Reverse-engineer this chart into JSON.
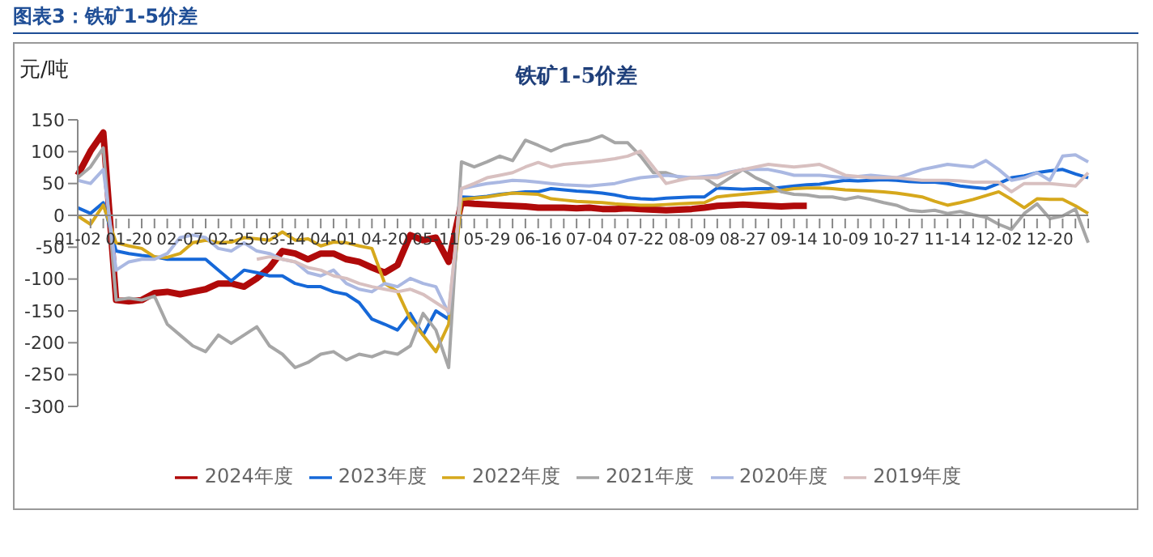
{
  "chart_data": {
    "type": "line",
    "title": "图表3：铁矿1-5价差",
    "subtitle": "铁矿1-5价差",
    "ylabel": "元/吨",
    "categories": [
      "01-02",
      null,
      null,
      null,
      "01-20",
      null,
      null,
      null,
      "02-07",
      null,
      null,
      null,
      "02-25",
      null,
      null,
      null,
      "03-14",
      null,
      null,
      null,
      "04-01",
      null,
      null,
      null,
      "04-20",
      null,
      null,
      null,
      "05-11",
      null,
      null,
      null,
      "05-29",
      null,
      null,
      null,
      "06-16",
      null,
      null,
      null,
      "07-04",
      null,
      null,
      null,
      "07-22",
      null,
      null,
      null,
      "08-09",
      null,
      null,
      null,
      "08-27",
      null,
      null,
      null,
      "09-14",
      null,
      null,
      null,
      "10-09",
      null,
      null,
      null,
      "10-27",
      null,
      null,
      null,
      "11-14",
      null,
      null,
      null,
      "12-02",
      null,
      null,
      null,
      "12-20",
      null,
      null,
      null
    ],
    "series": [
      {
        "name": "2024年度",
        "color": "#b00a0a",
        "values": [
          63,
          101,
          130,
          -133,
          -135,
          -133,
          -122,
          -120,
          -124,
          -120,
          -116,
          -107,
          -107,
          -112,
          -99,
          -82,
          -56,
          -60,
          -69,
          -60,
          -60,
          -69,
          -73,
          -82,
          -90,
          -78,
          -31,
          -39,
          -35,
          -73,
          20,
          18,
          17,
          16,
          15,
          14,
          12,
          12,
          12,
          11,
          12,
          10,
          10,
          11,
          10,
          9,
          8,
          9,
          10,
          12,
          15,
          16,
          17,
          16,
          15,
          14,
          15,
          15,
          null,
          null,
          null,
          null,
          null,
          null,
          null,
          null,
          null,
          null,
          null,
          null,
          null,
          null,
          null,
          null,
          null,
          null,
          null,
          null,
          null,
          null
        ]
      },
      {
        "name": "2023年度",
        "color": "#1668d8",
        "values": [
          12,
          3,
          20,
          -56,
          -60,
          -63,
          -65,
          -69,
          -69,
          -69,
          -69,
          -86,
          -103,
          -86,
          -90,
          -95,
          -95,
          -107,
          -112,
          -112,
          -120,
          -124,
          -137,
          -163,
          -171,
          -180,
          -154,
          -188,
          -150,
          -163,
          29,
          28,
          30,
          33,
          35,
          37,
          37,
          42,
          40,
          38,
          37,
          35,
          32,
          28,
          26,
          25,
          27,
          28,
          29,
          29,
          43,
          42,
          41,
          42,
          42,
          44,
          46,
          48,
          49,
          52,
          55,
          54,
          55,
          56,
          55,
          53,
          52,
          52,
          50,
          46,
          44,
          42,
          50,
          59,
          62,
          67,
          70,
          72,
          65,
          59
        ]
      },
      {
        "name": "2022年度",
        "color": "#d6a81c",
        "values": [
          -1,
          -14,
          16,
          -43,
          -48,
          -52,
          -65,
          -66,
          -60,
          -43,
          -39,
          -43,
          -42,
          -35,
          -37,
          -39,
          -26,
          -39,
          -37,
          -48,
          -42,
          -43,
          -48,
          -52,
          -107,
          -120,
          -163,
          -188,
          -214,
          -171,
          25,
          27,
          29,
          32,
          35,
          34,
          33,
          26,
          24,
          22,
          21,
          20,
          18,
          17,
          16,
          16,
          17,
          18,
          19,
          20,
          29,
          31,
          33,
          35,
          37,
          39,
          42,
          43,
          43,
          42,
          40,
          39,
          38,
          37,
          35,
          32,
          29,
          22,
          16,
          20,
          25,
          31,
          37,
          25,
          12,
          26,
          25,
          25,
          15,
          3
        ]
      },
      {
        "name": "2021年度",
        "color": "#a6a6a6",
        "values": [
          59,
          76,
          106,
          -133,
          -130,
          -133,
          -127,
          -171,
          -188,
          -205,
          -214,
          -188,
          -201,
          -188,
          -175,
          -205,
          -218,
          -239,
          -231,
          -218,
          -214,
          -227,
          -218,
          -222,
          -214,
          -218,
          -205,
          -154,
          -180,
          -239,
          84,
          76,
          84,
          93,
          86,
          118,
          110,
          101,
          110,
          114,
          118,
          125,
          114,
          114,
          93,
          67,
          67,
          60,
          59,
          59,
          46,
          59,
          72,
          59,
          50,
          37,
          33,
          32,
          29,
          29,
          25,
          29,
          25,
          20,
          16,
          8,
          6,
          8,
          3,
          6,
          1,
          -3,
          -14,
          -22,
          3,
          18,
          -5,
          -1,
          10,
          -43
        ]
      },
      {
        "name": "2020年度",
        "color": "#aab8e2",
        "values": [
          55,
          50,
          72,
          -86,
          -73,
          -69,
          -69,
          -60,
          -35,
          -31,
          -35,
          -52,
          -56,
          -43,
          -56,
          -60,
          -69,
          -73,
          -90,
          -95,
          -86,
          -107,
          -116,
          -120,
          -107,
          -112,
          -99,
          -107,
          -112,
          -154,
          42,
          46,
          50,
          52,
          55,
          54,
          52,
          50,
          48,
          47,
          46,
          48,
          50,
          55,
          59,
          61,
          63,
          61,
          59,
          61,
          63,
          68,
          72,
          72,
          72,
          68,
          63,
          63,
          63,
          61,
          59,
          61,
          63,
          61,
          59,
          65,
          72,
          76,
          80,
          78,
          76,
          86,
          72,
          55,
          59,
          67,
          55,
          93,
          95,
          84
        ]
      },
      {
        "name": "2019年度",
        "color": "#d8c0c0",
        "values": [
          null,
          null,
          null,
          null,
          null,
          null,
          null,
          null,
          null,
          null,
          null,
          null,
          null,
          null,
          -69,
          -65,
          -69,
          -73,
          -82,
          -86,
          -95,
          -99,
          -107,
          -112,
          -116,
          -120,
          -116,
          -124,
          -137,
          -150,
          42,
          50,
          59,
          63,
          67,
          76,
          83,
          76,
          80,
          82,
          84,
          86,
          89,
          93,
          101,
          76,
          50,
          55,
          59,
          59,
          59,
          67,
          72,
          76,
          80,
          78,
          76,
          78,
          80,
          72,
          63,
          61,
          59,
          59,
          59,
          57,
          55,
          55,
          55,
          54,
          52,
          52,
          52,
          37,
          50,
          50,
          50,
          48,
          46,
          67
        ]
      }
    ],
    "ylim": [
      -300,
      150
    ],
    "yticks": [
      -300,
      -250,
      -200,
      -150,
      -100,
      -50,
      0,
      50,
      100,
      150
    ],
    "legend": "bottom"
  }
}
